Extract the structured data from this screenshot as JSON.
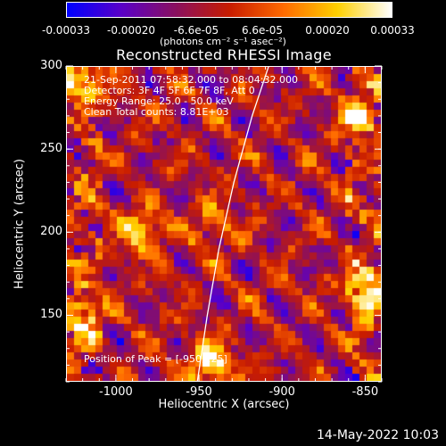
{
  "colorbar": {
    "tick_labels": [
      "-0.00033",
      "-0.00020",
      "-6.6e-05",
      "6.6e-05",
      "0.00020",
      "0.00033"
    ],
    "tick_values": [
      -0.00033,
      -0.0002,
      -6.6e-05,
      6.6e-05,
      0.0002,
      0.00033
    ],
    "range": [
      -0.00033,
      0.00033
    ],
    "units": "(photons cm⁻² s⁻¹ asec⁻²)",
    "colors": [
      "#0000ff",
      "#5a00c8",
      "#8a1060",
      "#c81c00",
      "#ff6a00",
      "#ffd000",
      "#ffffff"
    ]
  },
  "info": {
    "time_range": "21-Sep-2011 07:58:32.000 to 08:04:32.000",
    "detectors": "Detectors: 3F 4F 5F 6F 7F 8F, Att 0",
    "energy": "Energy Range: 25.0 - 50.0 keV",
    "clean": "Clean     Total counts: 8.81E+03",
    "peak": "Position of Peak = [-950,125]"
  },
  "footer": {
    "date": "14-May-2022 10:03"
  },
  "chart_data": {
    "type": "heatmap",
    "title": "Reconstructed RHESSI Image",
    "xlabel": "Heliocentric X (arcsec)",
    "ylabel": "Heliocentric Y (arcsec)",
    "xlim": [
      -1030,
      -840
    ],
    "ylim": [
      110,
      300
    ],
    "x_ticks": [
      -1000,
      -950,
      -900,
      -850
    ],
    "x_tick_labels": [
      "-1000",
      "-950",
      "-900",
      "-850"
    ],
    "y_ticks": [
      150,
      200,
      250,
      300
    ],
    "y_tick_labels": [
      "150",
      "200",
      "250",
      "300"
    ],
    "limb_curve": {
      "x": [
        -951,
        -945,
        -938,
        -929,
        -918,
        -908
      ],
      "y": [
        110,
        150,
        190,
        230,
        270,
        300
      ]
    },
    "sources": [
      {
        "x": -985,
        "y": 200,
        "intensity": 0.0003
      },
      {
        "x": -940,
        "y": 205,
        "intensity": 0.0002
      },
      {
        "x": -943,
        "y": 120,
        "intensity": 0.00033
      },
      {
        "x": -848,
        "y": 165,
        "intensity": 0.00033
      },
      {
        "x": -855,
        "y": 270,
        "intensity": 0.00025
      },
      {
        "x": -1025,
        "y": 290,
        "intensity": 0.0003
      },
      {
        "x": -1020,
        "y": 150,
        "intensity": 0.00028
      }
    ]
  }
}
